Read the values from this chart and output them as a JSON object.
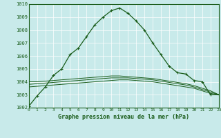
{
  "title": "Graphe pression niveau de la mer (hPa)",
  "background_color": "#c8eaea",
  "grid_color": "#ffffff",
  "line_color": "#1a5c1a",
  "ylim": [
    1002,
    1010
  ],
  "xlim": [
    0,
    23
  ],
  "yticks": [
    1002,
    1003,
    1004,
    1005,
    1006,
    1007,
    1008,
    1009,
    1010
  ],
  "xticks": [
    0,
    1,
    2,
    3,
    4,
    5,
    6,
    7,
    8,
    9,
    10,
    11,
    12,
    13,
    14,
    15,
    16,
    17,
    18,
    19,
    20,
    21,
    22,
    23
  ],
  "main_line": [
    1002.1,
    1002.9,
    1003.6,
    1004.5,
    1005.0,
    1006.1,
    1006.6,
    1007.5,
    1008.4,
    1009.0,
    1009.5,
    1009.7,
    1009.3,
    1008.7,
    1008.0,
    1007.0,
    1006.1,
    1005.2,
    1004.7,
    1004.6,
    1004.1,
    1004.0,
    1003.0,
    1003.0
  ],
  "flat_line1": [
    1003.6,
    1003.65,
    1003.7,
    1003.75,
    1003.8,
    1003.85,
    1003.9,
    1003.95,
    1004.0,
    1004.05,
    1004.1,
    1004.15,
    1004.15,
    1004.1,
    1004.05,
    1004.0,
    1003.9,
    1003.8,
    1003.7,
    1003.6,
    1003.5,
    1003.3,
    1003.1,
    1003.0
  ],
  "flat_line2": [
    1003.8,
    1003.85,
    1003.9,
    1003.95,
    1004.0,
    1004.05,
    1004.1,
    1004.15,
    1004.2,
    1004.25,
    1004.3,
    1004.3,
    1004.3,
    1004.25,
    1004.2,
    1004.15,
    1004.05,
    1003.95,
    1003.85,
    1003.75,
    1003.6,
    1003.4,
    1003.2,
    1003.0
  ],
  "flat_line3": [
    1004.0,
    1004.0,
    1004.05,
    1004.1,
    1004.15,
    1004.2,
    1004.25,
    1004.3,
    1004.35,
    1004.4,
    1004.45,
    1004.45,
    1004.4,
    1004.35,
    1004.3,
    1004.25,
    1004.15,
    1004.05,
    1003.95,
    1003.85,
    1003.7,
    1003.5,
    1003.3,
    1003.0
  ]
}
